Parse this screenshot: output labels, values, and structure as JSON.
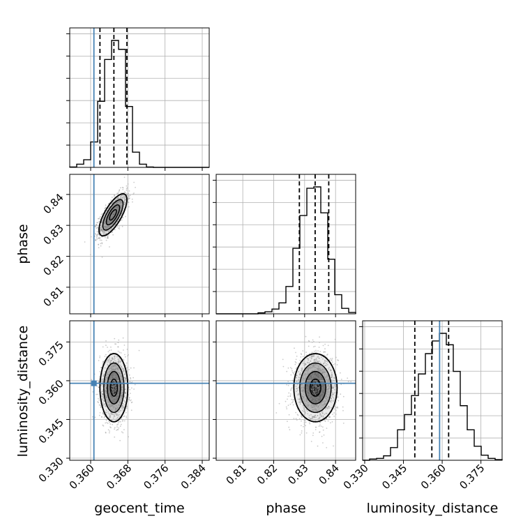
{
  "chart_data": {
    "type": "corner",
    "parameters": [
      "geocent_time",
      "phase",
      "luminosity_distance"
    ],
    "xlabels": [
      "geocent_time",
      "phase",
      "luminosity_distance"
    ],
    "ylabels": [
      "",
      "phase",
      "luminosity_distance"
    ],
    "ranges": {
      "geocent_time": [
        0.3555,
        0.3855
      ],
      "phase": [
        0.8014,
        0.8465
      ],
      "luminosity_distance": [
        0.3292,
        0.3832
      ]
    },
    "ticks": {
      "geocent_time": [
        0.36,
        0.368,
        0.376,
        0.384
      ],
      "phase": [
        0.81,
        0.82,
        0.83,
        0.84
      ],
      "luminosity_distance": [
        0.33,
        0.345,
        0.36,
        0.375
      ]
    },
    "tick_labels": {
      "geocent_time": [
        "0.360",
        "0.368",
        "0.376",
        "0.384"
      ],
      "phase": [
        "0.81",
        "0.82",
        "0.83",
        "0.84"
      ],
      "luminosity_distance": [
        "0.330",
        "0.345",
        "0.360",
        "0.375"
      ]
    },
    "truths": {
      "geocent_time": 0.3607,
      "phase": null,
      "luminosity_distance": 0.359
    },
    "quantiles": {
      "geocent_time": [
        0.362,
        0.365,
        0.3678
      ],
      "phase": [
        0.8283,
        0.8334,
        0.8378
      ],
      "luminosity_distance": [
        0.3494,
        0.356,
        0.3625
      ]
    },
    "histograms": {
      "geocent_time": {
        "range": [
          0.3555,
          0.3855
        ],
        "counts": [
          0.3,
          2.5,
          6,
          20,
          52,
          85,
          100,
          93,
          48,
          12,
          2.5,
          0.3,
          0,
          0,
          0,
          0,
          0,
          0,
          0,
          0
        ]
      },
      "phase": {
        "range": [
          0.8014,
          0.8465
        ],
        "counts": [
          0,
          0,
          0,
          0,
          0,
          0,
          0.7,
          1.5,
          3.5,
          8,
          20,
          48,
          72,
          92,
          93,
          74,
          40,
          14,
          4,
          1
        ]
      },
      "luminosity_distance": {
        "range": [
          0.3292,
          0.3832
        ],
        "counts": [
          0,
          1,
          1.5,
          3.5,
          10,
          24,
          36,
          51,
          68,
          84,
          94,
          100,
          91,
          70,
          43,
          24,
          11,
          4,
          1.5,
          0.5
        ]
      }
    },
    "joint": {
      "phase_vs_geocent_time": {
        "mean": [
          0.3648,
          0.8334
        ],
        "sd": [
          0.0015,
          0.0034
        ],
        "rho": 0.72
      },
      "luminosity_distance_vs_geocent_time": {
        "mean": [
          0.365,
          0.3573
        ],
        "sd": [
          0.0015,
          0.0066
        ],
        "rho": 0.0
      },
      "luminosity_distance_vs_phase": {
        "mean": [
          0.8335,
          0.3573
        ],
        "sd": [
          0.0035,
          0.0066
        ],
        "rho": 0.0
      }
    },
    "grid": true,
    "colors": {
      "truth": "#4682b4",
      "hist": "#000000",
      "grid": "#b0b0b0",
      "points": "#8a8a8a"
    }
  }
}
